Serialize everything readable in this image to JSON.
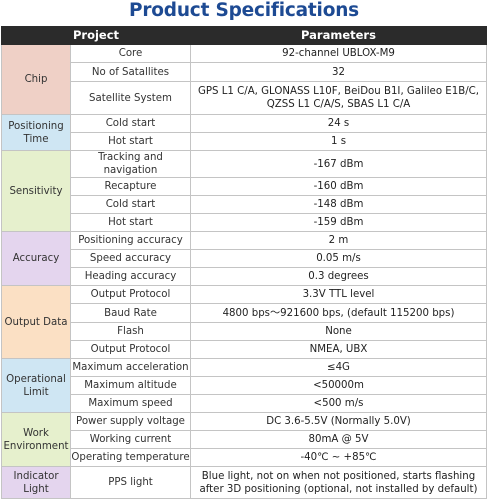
{
  "title": "Product Specifications",
  "header": {
    "project": "Project",
    "parameters": "Parameters"
  },
  "groups": [
    {
      "category": "Chip",
      "color": "#efd0c6",
      "rows": [
        {
          "param": "Core",
          "value": "92-channel UBLOX-M9"
        },
        {
          "param": "No of Satallites",
          "value": "32"
        },
        {
          "param": "Satellite System",
          "value": "GPS L1 C/A, GLONASS L10F, BeiDou B1I, Galileo E1B/C, QZSS L1 C/A/S, SBAS L1 C/A"
        }
      ]
    },
    {
      "category": "Positioning Time",
      "color": "#cfe6f3",
      "rows": [
        {
          "param": "Cold start",
          "value": "24 s"
        },
        {
          "param": "Hot start",
          "value": "1 s"
        }
      ]
    },
    {
      "category": "Sensitivity",
      "color": "#e6f0cd",
      "rows": [
        {
          "param": "Tracking and navigation",
          "value": "-167 dBm"
        },
        {
          "param": "Recapture",
          "value": "-160 dBm"
        },
        {
          "param": "Cold start",
          "value": "-148 dBm"
        },
        {
          "param": "Hot start",
          "value": "-159 dBm"
        }
      ]
    },
    {
      "category": "Accuracy",
      "color": "#e4d5ee",
      "rows": [
        {
          "param": "Positioning accuracy",
          "value": "2 m"
        },
        {
          "param": "Speed accuracy",
          "value": "0.05 m/s"
        },
        {
          "param": "Heading accuracy",
          "value": "0.3 degrees"
        }
      ]
    },
    {
      "category": "Output Data",
      "color": "#fbe0c4",
      "rows": [
        {
          "param": "Output Protocol",
          "value": "3.3V TTL level"
        },
        {
          "param": "Baud Rate",
          "value": "4800 bps～921600 bps, (default 115200 bps)"
        },
        {
          "param": "Flash",
          "value": "None"
        },
        {
          "param": "Output Protocol",
          "value": "NMEA, UBX"
        }
      ]
    },
    {
      "category": "Operational Limit",
      "color": "#cfe6f3",
      "rows": [
        {
          "param": "Maximum acceleration",
          "value": "≤4G"
        },
        {
          "param": "Maximum altitude",
          "value": "<50000m"
        },
        {
          "param": "Maximum speed",
          "value": "<500 m/s"
        }
      ]
    },
    {
      "category": "Work Environment",
      "color": "#e6f0cd",
      "rows": [
        {
          "param": "Power supply voltage",
          "value": "DC 3.6-5.5V (Normally  5.0V)"
        },
        {
          "param": "Working current",
          "value": "80mA @ 5V"
        },
        {
          "param": "Operating temperature",
          "value": "-40℃ ~ +85℃"
        }
      ]
    },
    {
      "category": "Indicator Light",
      "color": "#e4d5ee",
      "rows": [
        {
          "param": "PPS light",
          "value": "Blue light, not on when not positioned, starts flashing after 3D positioning (optional, not installed by default)"
        }
      ]
    }
  ]
}
